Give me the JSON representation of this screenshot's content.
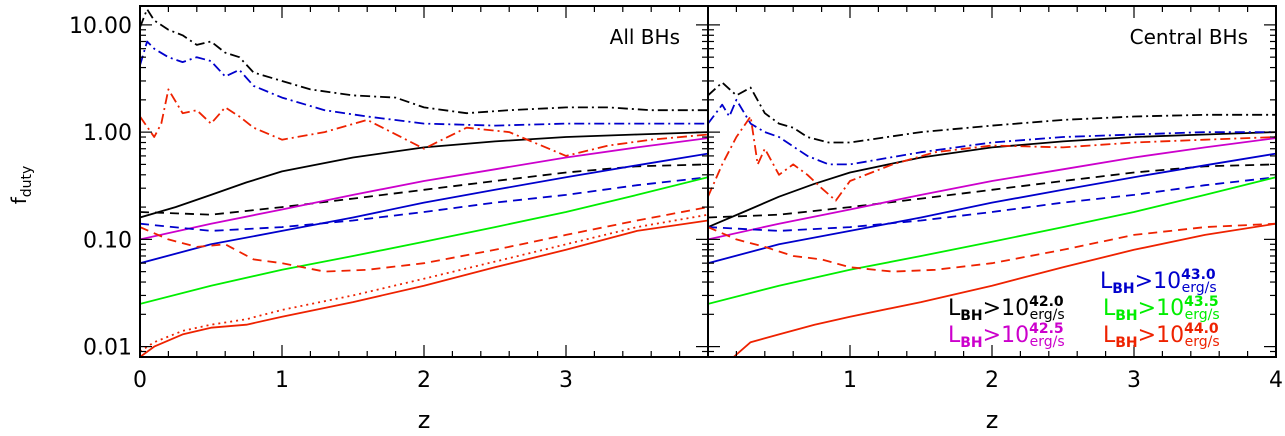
{
  "chart_data": [
    {
      "type": "line",
      "title": "All BHs",
      "xlabel": "z",
      "ylabel": "f_duty",
      "yscale": "log",
      "xlim": [
        0,
        4
      ],
      "ylim": [
        0.008,
        15
      ],
      "xticks": [
        "0",
        "1",
        "2",
        "3"
      ],
      "yticks": [
        "0.01",
        "0.10",
        "1.00",
        "10.00"
      ],
      "series": [
        {
          "color": "#000000",
          "style": "solid",
          "x": [
            0,
            0.25,
            0.5,
            0.75,
            1,
            1.5,
            2,
            2.5,
            3,
            3.5,
            4
          ],
          "y": [
            0.16,
            0.2,
            0.26,
            0.34,
            0.43,
            0.58,
            0.72,
            0.82,
            0.9,
            0.95,
            1.0
          ]
        },
        {
          "color": "#000000",
          "style": "dashed",
          "x": [
            0,
            0.5,
            1,
            1.5,
            2,
            2.5,
            3,
            3.5,
            4
          ],
          "y": [
            0.18,
            0.17,
            0.2,
            0.24,
            0.29,
            0.35,
            0.42,
            0.48,
            0.5
          ]
        },
        {
          "color": "#000000",
          "style": "dashdot",
          "x": [
            0,
            0.05,
            0.1,
            0.2,
            0.3,
            0.4,
            0.5,
            0.6,
            0.7,
            0.8,
            1,
            1.2,
            1.5,
            1.8,
            2,
            2.3,
            2.6,
            3,
            3.3,
            3.6,
            4
          ],
          "y": [
            9.5,
            14,
            11,
            9,
            8,
            6.5,
            7,
            5.5,
            5.0,
            3.6,
            3.0,
            2.5,
            2.2,
            2.1,
            1.7,
            1.5,
            1.6,
            1.7,
            1.7,
            1.6,
            1.6
          ]
        },
        {
          "color": "#cc00cc",
          "style": "solid",
          "x": [
            0,
            0.5,
            1,
            1.5,
            2,
            2.5,
            3,
            3.5,
            4
          ],
          "y": [
            0.1,
            0.14,
            0.19,
            0.26,
            0.35,
            0.45,
            0.58,
            0.72,
            0.88
          ]
        },
        {
          "color": "#0000cc",
          "style": "solid",
          "x": [
            0,
            0.5,
            1,
            1.5,
            2,
            2.5,
            3,
            3.5,
            4
          ],
          "y": [
            0.06,
            0.09,
            0.12,
            0.16,
            0.22,
            0.29,
            0.38,
            0.49,
            0.63
          ]
        },
        {
          "color": "#0000cc",
          "style": "dashed",
          "x": [
            0,
            0.5,
            1,
            1.5,
            2,
            2.5,
            3,
            3.5,
            4
          ],
          "y": [
            0.14,
            0.12,
            0.13,
            0.15,
            0.18,
            0.22,
            0.26,
            0.32,
            0.38
          ]
        },
        {
          "color": "#0000cc",
          "style": "dashdot",
          "x": [
            0,
            0.05,
            0.1,
            0.2,
            0.3,
            0.4,
            0.5,
            0.6,
            0.7,
            0.8,
            1,
            1.3,
            1.6,
            2,
            2.5,
            3,
            3.5,
            4
          ],
          "y": [
            4.2,
            7,
            6,
            5,
            4.5,
            5,
            4.6,
            3.3,
            3.8,
            2.7,
            2.1,
            1.6,
            1.4,
            1.2,
            1.15,
            1.2,
            1.2,
            1.2
          ]
        },
        {
          "color": "#00ee00",
          "style": "solid",
          "x": [
            0,
            0.5,
            1,
            1.5,
            2,
            2.5,
            3,
            3.5,
            4
          ],
          "y": [
            0.025,
            0.037,
            0.052,
            0.07,
            0.095,
            0.13,
            0.18,
            0.26,
            0.38
          ]
        },
        {
          "color": "#ee2200",
          "style": "solid",
          "x": [
            0,
            0.1,
            0.3,
            0.5,
            0.75,
            1,
            1.5,
            2,
            2.5,
            3,
            3.5,
            4
          ],
          "y": [
            0.008,
            0.01,
            0.013,
            0.015,
            0.016,
            0.019,
            0.026,
            0.037,
            0.055,
            0.08,
            0.12,
            0.15
          ]
        },
        {
          "color": "#ee2200",
          "style": "dotted",
          "x": [
            0,
            0.1,
            0.3,
            0.5,
            0.75,
            1,
            1.5,
            2,
            2.5,
            3,
            3.5,
            4
          ],
          "y": [
            0.009,
            0.011,
            0.014,
            0.016,
            0.018,
            0.022,
            0.03,
            0.043,
            0.062,
            0.09,
            0.13,
            0.17
          ]
        },
        {
          "color": "#ee2200",
          "style": "dashed",
          "x": [
            0,
            0.2,
            0.4,
            0.6,
            0.8,
            1,
            1.3,
            1.6,
            2,
            2.5,
            3,
            3.5,
            4
          ],
          "y": [
            0.13,
            0.1,
            0.085,
            0.09,
            0.065,
            0.06,
            0.05,
            0.052,
            0.06,
            0.08,
            0.11,
            0.15,
            0.2
          ]
        },
        {
          "color": "#ee2200",
          "style": "dashdot",
          "x": [
            0,
            0.1,
            0.15,
            0.2,
            0.3,
            0.4,
            0.5,
            0.6,
            0.7,
            0.8,
            1,
            1.3,
            1.6,
            2,
            2.3,
            2.6,
            3,
            3.3,
            3.6,
            4
          ],
          "y": [
            1.4,
            0.9,
            1.2,
            2.5,
            1.5,
            1.6,
            1.2,
            1.7,
            1.4,
            1.1,
            0.85,
            1.0,
            1.3,
            0.7,
            1.1,
            1.0,
            0.6,
            0.75,
            0.85,
            0.95
          ]
        }
      ]
    },
    {
      "type": "line",
      "title": "Central BHs",
      "xlabel": "z",
      "ylabel": "",
      "yscale": "log",
      "xlim": [
        0,
        4
      ],
      "ylim": [
        0.008,
        15
      ],
      "xticks": [
        "1",
        "2",
        "3",
        "4"
      ],
      "series": [
        {
          "color": "#000000",
          "style": "solid",
          "x": [
            0,
            0.25,
            0.5,
            0.75,
            1,
            1.5,
            2,
            2.5,
            3,
            3.5,
            4
          ],
          "y": [
            0.13,
            0.18,
            0.25,
            0.33,
            0.42,
            0.58,
            0.72,
            0.82,
            0.9,
            0.95,
            1.0
          ]
        },
        {
          "color": "#000000",
          "style": "dashed",
          "x": [
            0,
            0.5,
            1,
            1.5,
            2,
            2.5,
            3,
            3.5,
            4
          ],
          "y": [
            0.16,
            0.17,
            0.2,
            0.24,
            0.29,
            0.35,
            0.42,
            0.48,
            0.5
          ]
        },
        {
          "color": "#000000",
          "style": "dashdot",
          "x": [
            0,
            0.1,
            0.2,
            0.3,
            0.4,
            0.5,
            0.6,
            0.7,
            0.85,
            1,
            1.5,
            2,
            2.5,
            3,
            3.5,
            4
          ],
          "y": [
            2.2,
            2.9,
            2.2,
            2.6,
            1.5,
            1.2,
            1.1,
            0.9,
            0.8,
            0.8,
            1.0,
            1.15,
            1.3,
            1.4,
            1.45,
            1.45
          ]
        },
        {
          "color": "#cc00cc",
          "style": "solid",
          "x": [
            0,
            0.5,
            1,
            1.5,
            2,
            2.5,
            3,
            3.5,
            4
          ],
          "y": [
            0.1,
            0.14,
            0.19,
            0.26,
            0.35,
            0.45,
            0.58,
            0.72,
            0.88
          ]
        },
        {
          "color": "#0000cc",
          "style": "solid",
          "x": [
            0,
            0.5,
            1,
            1.5,
            2,
            2.5,
            3,
            3.5,
            4
          ],
          "y": [
            0.06,
            0.09,
            0.12,
            0.16,
            0.22,
            0.29,
            0.38,
            0.49,
            0.63
          ]
        },
        {
          "color": "#0000cc",
          "style": "dashed",
          "x": [
            0,
            0.5,
            1,
            1.5,
            2,
            2.5,
            3,
            3.5,
            4
          ],
          "y": [
            0.13,
            0.12,
            0.13,
            0.15,
            0.18,
            0.22,
            0.26,
            0.32,
            0.38
          ]
        },
        {
          "color": "#0000cc",
          "style": "dashdot",
          "x": [
            0,
            0.1,
            0.15,
            0.2,
            0.3,
            0.4,
            0.5,
            0.7,
            0.85,
            1,
            1.5,
            2,
            2.5,
            3,
            3.5,
            4
          ],
          "y": [
            1.2,
            1.8,
            1.4,
            2.0,
            1.2,
            1.0,
            0.9,
            0.6,
            0.5,
            0.5,
            0.65,
            0.8,
            0.9,
            0.95,
            1.0,
            1.0
          ]
        },
        {
          "color": "#00ee00",
          "style": "solid",
          "x": [
            0,
            0.5,
            1,
            1.5,
            2,
            2.5,
            3,
            3.5,
            4
          ],
          "y": [
            0.025,
            0.037,
            0.052,
            0.07,
            0.095,
            0.13,
            0.18,
            0.26,
            0.38
          ]
        },
        {
          "color": "#ee2200",
          "style": "solid",
          "x": [
            0.18,
            0.3,
            0.5,
            0.75,
            1,
            1.5,
            2,
            2.5,
            3,
            3.5,
            4
          ],
          "y": [
            0.008,
            0.011,
            0.013,
            0.016,
            0.019,
            0.026,
            0.037,
            0.055,
            0.08,
            0.11,
            0.14
          ]
        },
        {
          "color": "#ee2200",
          "style": "dashed",
          "x": [
            0,
            0.2,
            0.4,
            0.6,
            0.8,
            1,
            1.3,
            1.6,
            2,
            2.5,
            3,
            3.5,
            4
          ],
          "y": [
            0.13,
            0.1,
            0.085,
            0.07,
            0.065,
            0.055,
            0.05,
            0.052,
            0.06,
            0.08,
            0.11,
            0.13,
            0.14
          ]
        },
        {
          "color": "#ee2200",
          "style": "dashdot",
          "x": [
            0,
            0.1,
            0.2,
            0.3,
            0.35,
            0.4,
            0.5,
            0.6,
            0.7,
            0.8,
            0.9,
            1,
            1.3,
            1.6,
            2,
            2.5,
            3,
            3.5,
            4
          ],
          "y": [
            0.25,
            0.5,
            0.9,
            1.4,
            0.5,
            0.7,
            0.4,
            0.5,
            0.4,
            0.3,
            0.23,
            0.35,
            0.5,
            0.65,
            0.75,
            0.72,
            0.8,
            0.85,
            0.9
          ]
        }
      ],
      "legend": {
        "placement": "bottom-right",
        "entries": [
          {
            "sym": "L",
            "sub1": "BH",
            "op": ">10",
            "exp": "43.0",
            "unit": "erg/s",
            "color": "#0000cc"
          },
          {
            "sym": "L",
            "sub1": "BH",
            "op": ">10",
            "exp": "42.0",
            "unit": "erg/s",
            "color": "#000000"
          },
          {
            "sym": "L",
            "sub1": "BH",
            "op": ">10",
            "exp": "43.5",
            "unit": "erg/s",
            "color": "#00ee00"
          },
          {
            "sym": "L",
            "sub1": "BH",
            "op": ">10",
            "exp": "42.5",
            "unit": "erg/s",
            "color": "#cc00cc"
          },
          {
            "sym": "L",
            "sub1": "BH",
            "op": ">10",
            "exp": "44.0",
            "unit": "erg/s",
            "color": "#ee2200"
          }
        ]
      }
    }
  ]
}
